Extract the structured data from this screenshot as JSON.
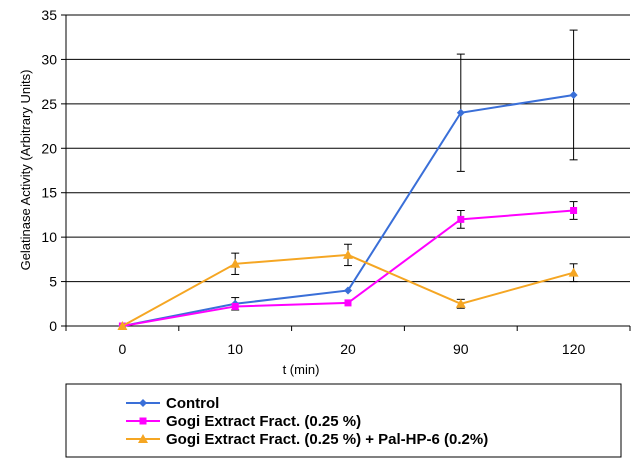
{
  "chart_data": {
    "type": "line",
    "categories": [
      "0",
      "10",
      "20",
      "90",
      "120"
    ],
    "xlabel": "t (min)",
    "ylabel": "Gelatinase Activity (Arbitrary Units)",
    "ylim": [
      0,
      35
    ],
    "yticks": [
      0,
      5,
      10,
      15,
      20,
      25,
      30,
      35
    ],
    "grid": "horizontal",
    "legend_position": "bottom",
    "series": [
      {
        "name": "Control",
        "color": "#3a6fd8",
        "marker": "diamond",
        "values": [
          0,
          2.5,
          4,
          24,
          26
        ],
        "errors": [
          0,
          0.7,
          0,
          6.6,
          7.3
        ]
      },
      {
        "name": "Gogi Extract Fract. (0.25 %)",
        "color": "#ff00ff",
        "marker": "square",
        "values": [
          0,
          2.2,
          2.6,
          12,
          13
        ],
        "errors": [
          0,
          0,
          0,
          1,
          1
        ]
      },
      {
        "name": "Gogi Extract Fract. (0.25 %) + Pal-HP-6 (0.2%)",
        "color": "#f5a623",
        "marker": "triangle",
        "values": [
          0,
          7,
          8,
          2.5,
          6
        ],
        "errors": [
          0,
          1.2,
          1.2,
          0.5,
          1
        ]
      }
    ]
  }
}
